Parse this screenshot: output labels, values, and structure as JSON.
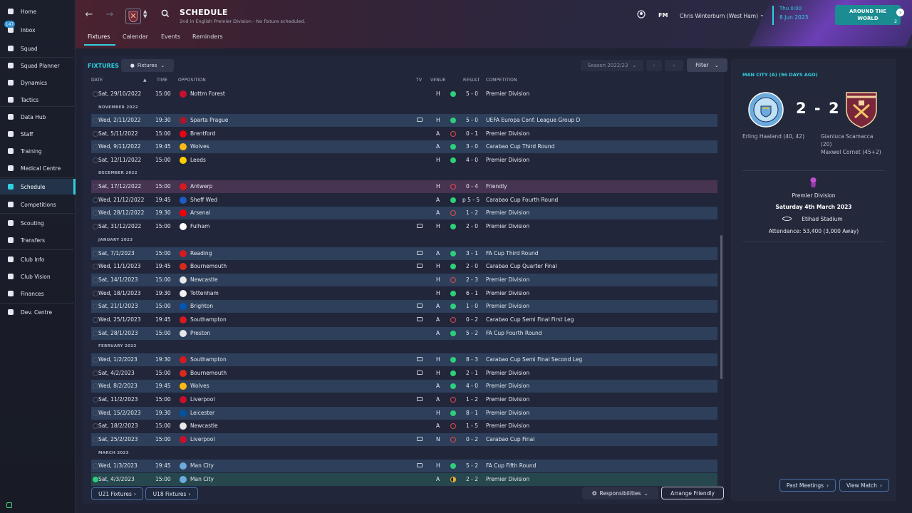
{
  "sidebar": {
    "inbox_badge": "147",
    "items": [
      {
        "label": "Home",
        "icon": "home-icon"
      },
      {
        "label": "Inbox",
        "icon": "inbox-icon"
      },
      {
        "label": "Squad",
        "icon": "shirt-icon"
      },
      {
        "label": "Squad Planner",
        "icon": "planner-icon"
      },
      {
        "label": "Dynamics",
        "icon": "dynamics-icon"
      },
      {
        "label": "Tactics",
        "icon": "tactics-icon"
      },
      {
        "label": "Data Hub",
        "icon": "data-hub-icon"
      },
      {
        "label": "Staff",
        "icon": "staff-icon"
      },
      {
        "label": "Training",
        "icon": "training-icon"
      },
      {
        "label": "Medical Centre",
        "icon": "medical-icon"
      },
      {
        "label": "Schedule",
        "icon": "calendar-icon"
      },
      {
        "label": "Competitions",
        "icon": "trophy-icon"
      },
      {
        "label": "Scouting",
        "icon": "scouting-icon"
      },
      {
        "label": "Transfers",
        "icon": "transfers-icon"
      },
      {
        "label": "Club Info",
        "icon": "club-info-icon"
      },
      {
        "label": "Club Vision",
        "icon": "club-vision-icon"
      },
      {
        "label": "Finances",
        "icon": "finances-icon"
      },
      {
        "label": "Dev. Centre",
        "icon": "dev-centre-icon"
      }
    ]
  },
  "header": {
    "title": "SCHEDULE",
    "subtitle": "2nd in English Premier Division - No fixture scheduled.",
    "tabs": [
      "Fixtures",
      "Calendar",
      "Events",
      "Reminders"
    ],
    "fm_label": "FM",
    "user": "Chris Winterburn (West Ham)",
    "date_line1": "Thu 0:00",
    "date_line2": "8 Jun 2023",
    "around_line1": "AROUND THE",
    "around_line2": "WORLD",
    "around_count": "2"
  },
  "fixtures": {
    "title": "FIXTURES",
    "view_dropdown": "Fixtures",
    "season": "Season 2022/23",
    "filter": "Filter",
    "columns": [
      "DATE",
      "TIME",
      "OPPOSITION",
      "TV",
      "VENUE",
      "RESULT",
      "COMPETITION"
    ],
    "months": [
      "NOVEMBER 2022",
      "DECEMBER 2022",
      "JANUARY 2023",
      "FEBRUARY 2023",
      "MARCH 2023"
    ],
    "rows": [
      {
        "date": "Sat, 29/10/2022",
        "time": "15:00",
        "opp": "Nottm Forest",
        "tv": false,
        "venue": "H",
        "res": "W",
        "score": "5 - 0",
        "comp": "Premier Division",
        "crest": "#c8102e"
      },
      {
        "date": "Wed, 2/11/2022",
        "time": "19:30",
        "opp": "Sparta Prague",
        "tv": true,
        "venue": "H",
        "res": "W",
        "score": "5 - 0",
        "comp": "UEFA Europa Conf. League Group D",
        "crest": "#a6192e"
      },
      {
        "date": "Sat, 5/11/2022",
        "time": "15:00",
        "opp": "Brentford",
        "tv": false,
        "venue": "A",
        "res": "L",
        "score": "0 - 1",
        "comp": "Premier Division",
        "crest": "#e30613"
      },
      {
        "date": "Wed, 9/11/2022",
        "time": "19:45",
        "opp": "Wolves",
        "tv": false,
        "venue": "A",
        "res": "W",
        "score": "3 - 0",
        "comp": "Carabao Cup Third Round",
        "crest": "#fdb913"
      },
      {
        "date": "Sat, 12/11/2022",
        "time": "15:00",
        "opp": "Leeds",
        "tv": false,
        "venue": "H",
        "res": "W",
        "score": "4 - 0",
        "comp": "Premier Division",
        "crest": "#ffcd00"
      },
      {
        "date": "Sat, 17/12/2022",
        "time": "15:00",
        "opp": "Antwerp",
        "tv": false,
        "venue": "H",
        "res": "L",
        "score": "0 - 4",
        "comp": "Friendly",
        "crest": "#d71920"
      },
      {
        "date": "Wed, 21/12/2022",
        "time": "19:45",
        "opp": "Sheff Wed",
        "tv": false,
        "venue": "A",
        "res": "W",
        "score": "p 5 - 5",
        "comp": "Carabao Cup Fourth Round",
        "crest": "#1e5bc6"
      },
      {
        "date": "Wed, 28/12/2022",
        "time": "19:30",
        "opp": "Arsenal",
        "tv": false,
        "venue": "A",
        "res": "L",
        "score": "1 - 2",
        "comp": "Premier Division",
        "crest": "#ef0107"
      },
      {
        "date": "Sat, 31/12/2022",
        "time": "15:00",
        "opp": "Fulham",
        "tv": true,
        "venue": "H",
        "res": "W",
        "score": "2 - 0",
        "comp": "Premier Division",
        "crest": "#ffffff"
      },
      {
        "date": "Sat, 7/1/2023",
        "time": "15:00",
        "opp": "Reading",
        "tv": true,
        "venue": "A",
        "res": "W",
        "score": "3 - 1",
        "comp": "FA Cup Third Round",
        "crest": "#d71920"
      },
      {
        "date": "Wed, 11/1/2023",
        "time": "19:45",
        "opp": "Bournemouth",
        "tv": true,
        "venue": "H",
        "res": "W",
        "score": "2 - 0",
        "comp": "Carabao Cup Quarter Final",
        "crest": "#da291c"
      },
      {
        "date": "Sat, 14/1/2023",
        "time": "15:00",
        "opp": "Newcastle",
        "tv": false,
        "venue": "H",
        "res": "L",
        "score": "2 - 3",
        "comp": "Premier Division",
        "crest": "#e8e8e8"
      },
      {
        "date": "Wed, 18/1/2023",
        "time": "19:30",
        "opp": "Tottenham",
        "tv": false,
        "venue": "H",
        "res": "W",
        "score": "6 - 1",
        "comp": "Premier Division",
        "crest": "#f0f0f0"
      },
      {
        "date": "Sat, 21/1/2023",
        "time": "15:00",
        "opp": "Brighton",
        "tv": true,
        "venue": "A",
        "res": "W",
        "score": "1 - 0",
        "comp": "Premier Division",
        "crest": "#0057b8"
      },
      {
        "date": "Wed, 25/1/2023",
        "time": "19:45",
        "opp": "Southampton",
        "tv": true,
        "venue": "A",
        "res": "L",
        "score": "0 - 2",
        "comp": "Carabao Cup Semi Final First Leg",
        "crest": "#d71920"
      },
      {
        "date": "Sat, 28/1/2023",
        "time": "15:00",
        "opp": "Preston",
        "tv": false,
        "venue": "A",
        "res": "W",
        "score": "5 - 2",
        "comp": "FA Cup Fourth Round",
        "crest": "#e6e6e6"
      },
      {
        "date": "Wed, 1/2/2023",
        "time": "19:30",
        "opp": "Southampton",
        "tv": true,
        "venue": "H",
        "res": "W",
        "score": "8 - 3",
        "comp": "Carabao Cup Semi Final Second Leg",
        "crest": "#d71920"
      },
      {
        "date": "Sat, 4/2/2023",
        "time": "15:00",
        "opp": "Bournemouth",
        "tv": true,
        "venue": "H",
        "res": "W",
        "score": "2 - 1",
        "comp": "Premier Division",
        "crest": "#da291c"
      },
      {
        "date": "Wed, 8/2/2023",
        "time": "19:45",
        "opp": "Wolves",
        "tv": false,
        "venue": "A",
        "res": "W",
        "score": "4 - 0",
        "comp": "Premier Division",
        "crest": "#fdb913"
      },
      {
        "date": "Sat, 11/2/2023",
        "time": "15:00",
        "opp": "Liverpool",
        "tv": true,
        "venue": "A",
        "res": "L",
        "score": "1 - 2",
        "comp": "Premier Division",
        "crest": "#c8102e"
      },
      {
        "date": "Wed, 15/2/2023",
        "time": "19:30",
        "opp": "Leicester",
        "tv": false,
        "venue": "H",
        "res": "W",
        "score": "8 - 1",
        "comp": "Premier Division",
        "crest": "#0053a0"
      },
      {
        "date": "Sat, 18/2/2023",
        "time": "15:00",
        "opp": "Newcastle",
        "tv": false,
        "venue": "A",
        "res": "L",
        "score": "1 - 5",
        "comp": "Premier Division",
        "crest": "#e8e8e8"
      },
      {
        "date": "Sat, 25/2/2023",
        "time": "15:00",
        "opp": "Liverpool",
        "tv": true,
        "venue": "N",
        "res": "L",
        "score": "0 - 2",
        "comp": "Carabao Cup Final",
        "crest": "#c8102e"
      },
      {
        "date": "Wed, 1/3/2023",
        "time": "19:45",
        "opp": "Man City",
        "tv": true,
        "venue": "H",
        "res": "W",
        "score": "5 - 2",
        "comp": "FA Cup Fifth Round",
        "crest": "#6cabdd"
      },
      {
        "date": "Sat, 4/3/2023",
        "time": "15:00",
        "opp": "Man City",
        "tv": false,
        "venue": "A",
        "res": "D",
        "score": "2 - 2",
        "comp": "Premier Division",
        "crest": "#6cabdd"
      }
    ],
    "bottom": {
      "u21": "U21 Fixtures",
      "u18": "U18 Fixtures",
      "responsibilities": "Responsibilities",
      "arrange": "Arrange Friendly"
    }
  },
  "match_panel": {
    "title": "MAN CITY (A) (96 DAYS AGO)",
    "home_badge": "MANCHESTER CITY",
    "away_badge": "WEST HAM UNITED",
    "score": "2 - 2",
    "home_scorers": [
      "Erling Haaland (40, 42)"
    ],
    "away_scorers": [
      "Gianluca Scamacca",
      "(20)",
      "Maxwel Cornet (45+2)"
    ],
    "competition": "Premier Division",
    "date": "Saturday 4th March 2023",
    "stadium": "Etihad Stadium",
    "attendance": "Attendance: 53,400 (3,000 Away)",
    "past_meetings": "Past Meetings",
    "view_match": "View Match"
  },
  "colors": {
    "accent": "#2fd0e0",
    "win": "#2fcf7a",
    "loss": "#e04a4a",
    "draw": "#f0b02c"
  }
}
